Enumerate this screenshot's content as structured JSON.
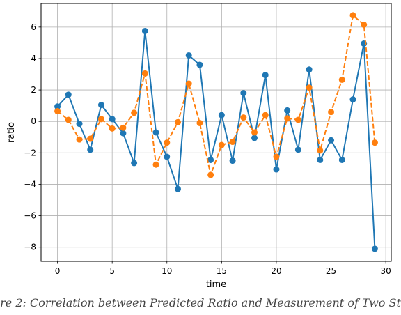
{
  "caption": "re 2: Correlation between Predicted Ratio and Measurement of Two St",
  "chart_data": {
    "type": "line",
    "xlabel": "time",
    "ylabel": "ratio",
    "xlim": [
      -1.5,
      30.5
    ],
    "ylim": [
      -8.9,
      7.5
    ],
    "xticks": [
      0,
      5,
      10,
      15,
      20,
      25,
      30
    ],
    "yticks": [
      -8,
      -6,
      -4,
      -2,
      0,
      2,
      4,
      6
    ],
    "grid": true,
    "x": [
      0,
      1,
      2,
      3,
      4,
      5,
      6,
      7,
      8,
      9,
      10,
      11,
      12,
      13,
      14,
      15,
      16,
      17,
      18,
      19,
      20,
      21,
      22,
      23,
      24,
      25,
      26,
      27,
      28,
      29
    ],
    "series": [
      {
        "color": "#1f77b4",
        "line_style": "solid",
        "marker": "circle",
        "values": [
          0.95,
          1.7,
          -0.15,
          -1.8,
          1.05,
          0.15,
          -0.75,
          -2.65,
          5.75,
          -0.7,
          -2.25,
          -4.3,
          4.2,
          3.6,
          -2.45,
          0.4,
          -2.5,
          1.8,
          -1.05,
          2.95,
          -3.05,
          0.7,
          -1.8,
          3.3,
          -2.45,
          -1.2,
          -2.45,
          1.4,
          4.95,
          -8.1
        ]
      },
      {
        "color": "#ff7f0e",
        "line_style": "dashed",
        "marker": "circle",
        "values": [
          0.65,
          0.1,
          -1.15,
          -1.1,
          0.15,
          -0.45,
          -0.4,
          0.55,
          3.05,
          -2.75,
          -1.35,
          -0.05,
          2.4,
          -0.1,
          -3.4,
          -1.5,
          -1.3,
          0.25,
          -0.7,
          0.4,
          -2.25,
          0.2,
          0.1,
          2.15,
          -1.85,
          0.6,
          2.65,
          6.75,
          6.15,
          -1.35
        ]
      }
    ]
  }
}
